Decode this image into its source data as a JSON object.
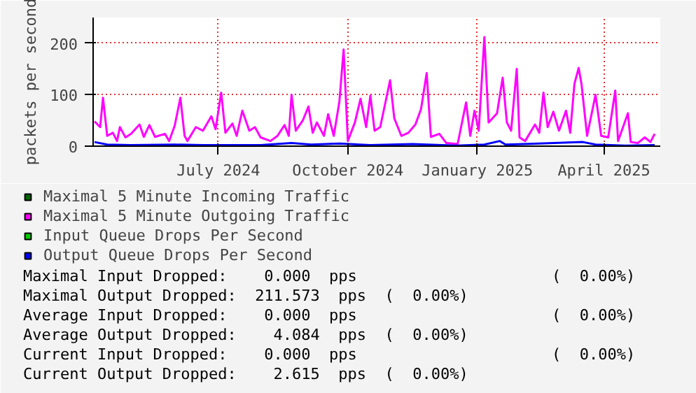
{
  "chart_data": {
    "type": "line",
    "ylabel": "packets per second",
    "xlim": [
      "2024-04-18",
      "2025-05-26"
    ],
    "xticks": [
      {
        "value": "2024-07-16",
        "label": "July 2024"
      },
      {
        "value": "2024-10-16",
        "label": "October 2024"
      },
      {
        "value": "2025-01-16",
        "label": "January 2025"
      },
      {
        "value": "2025-04-16",
        "label": "April 2025"
      }
    ],
    "ylim": [
      0,
      250
    ],
    "yticks": [
      0,
      100,
      200
    ],
    "grid": true,
    "legend": "bottom",
    "series": [
      {
        "name": "Maximal 5 Minute Incoming Traffic",
        "color": "#006600",
        "values": [
          null
        ]
      },
      {
        "name": "Maximal 5 Minute Outgoing Traffic",
        "color": "#ff00ff",
        "x": [
          "2024-04-19",
          "2024-04-23",
          "2024-04-25",
          "2024-04-28",
          "2024-05-02",
          "2024-05-05",
          "2024-05-07",
          "2024-05-11",
          "2024-05-15",
          "2024-05-21",
          "2024-05-24",
          "2024-05-28",
          "2024-06-01",
          "2024-06-08",
          "2024-06-11",
          "2024-06-15",
          "2024-06-19",
          "2024-06-22",
          "2024-06-24",
          "2024-06-30",
          "2024-07-05",
          "2024-07-11",
          "2024-07-14",
          "2024-07-18",
          "2024-07-21",
          "2024-07-26",
          "2024-07-29",
          "2024-08-02",
          "2024-08-07",
          "2024-08-11",
          "2024-08-15",
          "2024-08-22",
          "2024-08-27",
          "2024-09-01",
          "2024-09-04",
          "2024-09-06",
          "2024-09-09",
          "2024-09-14",
          "2024-09-18",
          "2024-09-21",
          "2024-09-24",
          "2024-09-29",
          "2024-10-02",
          "2024-10-06",
          "2024-10-10",
          "2024-10-13",
          "2024-10-16",
          "2024-10-21",
          "2024-10-25",
          "2024-10-29",
          "2024-11-01",
          "2024-11-04",
          "2024-11-08",
          "2024-11-15",
          "2024-11-18",
          "2024-11-23",
          "2024-11-28",
          "2024-12-03",
          "2024-12-07",
          "2024-12-11",
          "2024-12-14",
          "2024-12-20",
          "2024-12-25",
          "2025-01-02",
          "2025-01-08",
          "2025-01-11",
          "2025-01-14",
          "2025-01-17",
          "2025-01-21",
          "2025-01-24",
          "2025-01-30",
          "2025-02-03",
          "2025-02-06",
          "2025-02-09",
          "2025-02-13",
          "2025-02-15",
          "2025-02-19",
          "2025-02-26",
          "2025-03-01",
          "2025-03-04",
          "2025-03-07",
          "2025-03-11",
          "2025-03-15",
          "2025-03-20",
          "2025-03-23",
          "2025-03-26",
          "2025-03-29",
          "2025-03-31",
          "2025-04-04",
          "2025-04-10",
          "2025-04-14",
          "2025-04-19",
          "2025-04-24",
          "2025-04-26",
          "2025-05-03",
          "2025-05-05",
          "2025-05-10",
          "2025-05-15",
          "2025-05-19",
          "2025-05-22"
        ],
        "values": [
          48,
          37,
          94,
          20,
          26,
          10,
          37,
          17,
          24,
          42,
          18,
          41,
          18,
          24,
          10,
          40,
          94,
          20,
          10,
          37,
          30,
          58,
          33,
          104,
          26,
          44,
          20,
          69,
          30,
          37,
          17,
          10,
          20,
          41,
          20,
          100,
          30,
          50,
          77,
          26,
          46,
          20,
          62,
          20,
          87,
          188,
          10,
          46,
          92,
          37,
          98,
          30,
          37,
          128,
          54,
          20,
          26,
          42,
          72,
          142,
          18,
          24,
          6,
          4,
          85,
          20,
          69,
          30,
          212,
          46,
          64,
          133,
          46,
          30,
          150,
          17,
          10,
          42,
          26,
          104,
          37,
          67,
          30,
          69,
          26,
          121,
          152,
          121,
          20,
          100,
          20,
          17,
          108,
          10,
          64,
          8,
          6,
          17,
          8,
          24
        ]
      },
      {
        "name": "Input Queue Drops Per Second",
        "color": "#00cc00",
        "values": [
          null
        ]
      },
      {
        "name": "Output Queue Drops Per Second",
        "color": "#0000ff",
        "x": [
          "2024-04-19",
          "2024-04-28",
          "2024-05-15",
          "2024-06-15",
          "2024-07-05",
          "2024-08-15",
          "2024-09-06",
          "2024-09-20",
          "2024-10-10",
          "2024-11-01",
          "2024-12-01",
          "2025-01-01",
          "2025-01-21",
          "2025-02-01",
          "2025-02-05",
          "2025-03-01",
          "2025-04-01",
          "2025-04-10",
          "2025-05-01",
          "2025-05-22"
        ],
        "values": [
          8,
          3,
          2,
          3,
          2,
          2,
          6,
          3,
          5,
          2,
          4,
          1,
          3,
          10,
          3,
          5,
          8,
          3,
          1,
          2
        ]
      }
    ],
    "annotations": [
      "Maximal Input Dropped:    0.000  pps                     (  0.00%)",
      "Maximal Output Dropped:  211.573  pps  (  0.00%)",
      "Average Input Dropped:    0.000  pps                     (  0.00%)",
      "Average Output Dropped:    4.084  pps  (  0.00%)",
      "Current Input Dropped:    0.000  pps                     (  0.00%)",
      "Current Output Dropped:    2.615  pps  (  0.00%)"
    ]
  }
}
